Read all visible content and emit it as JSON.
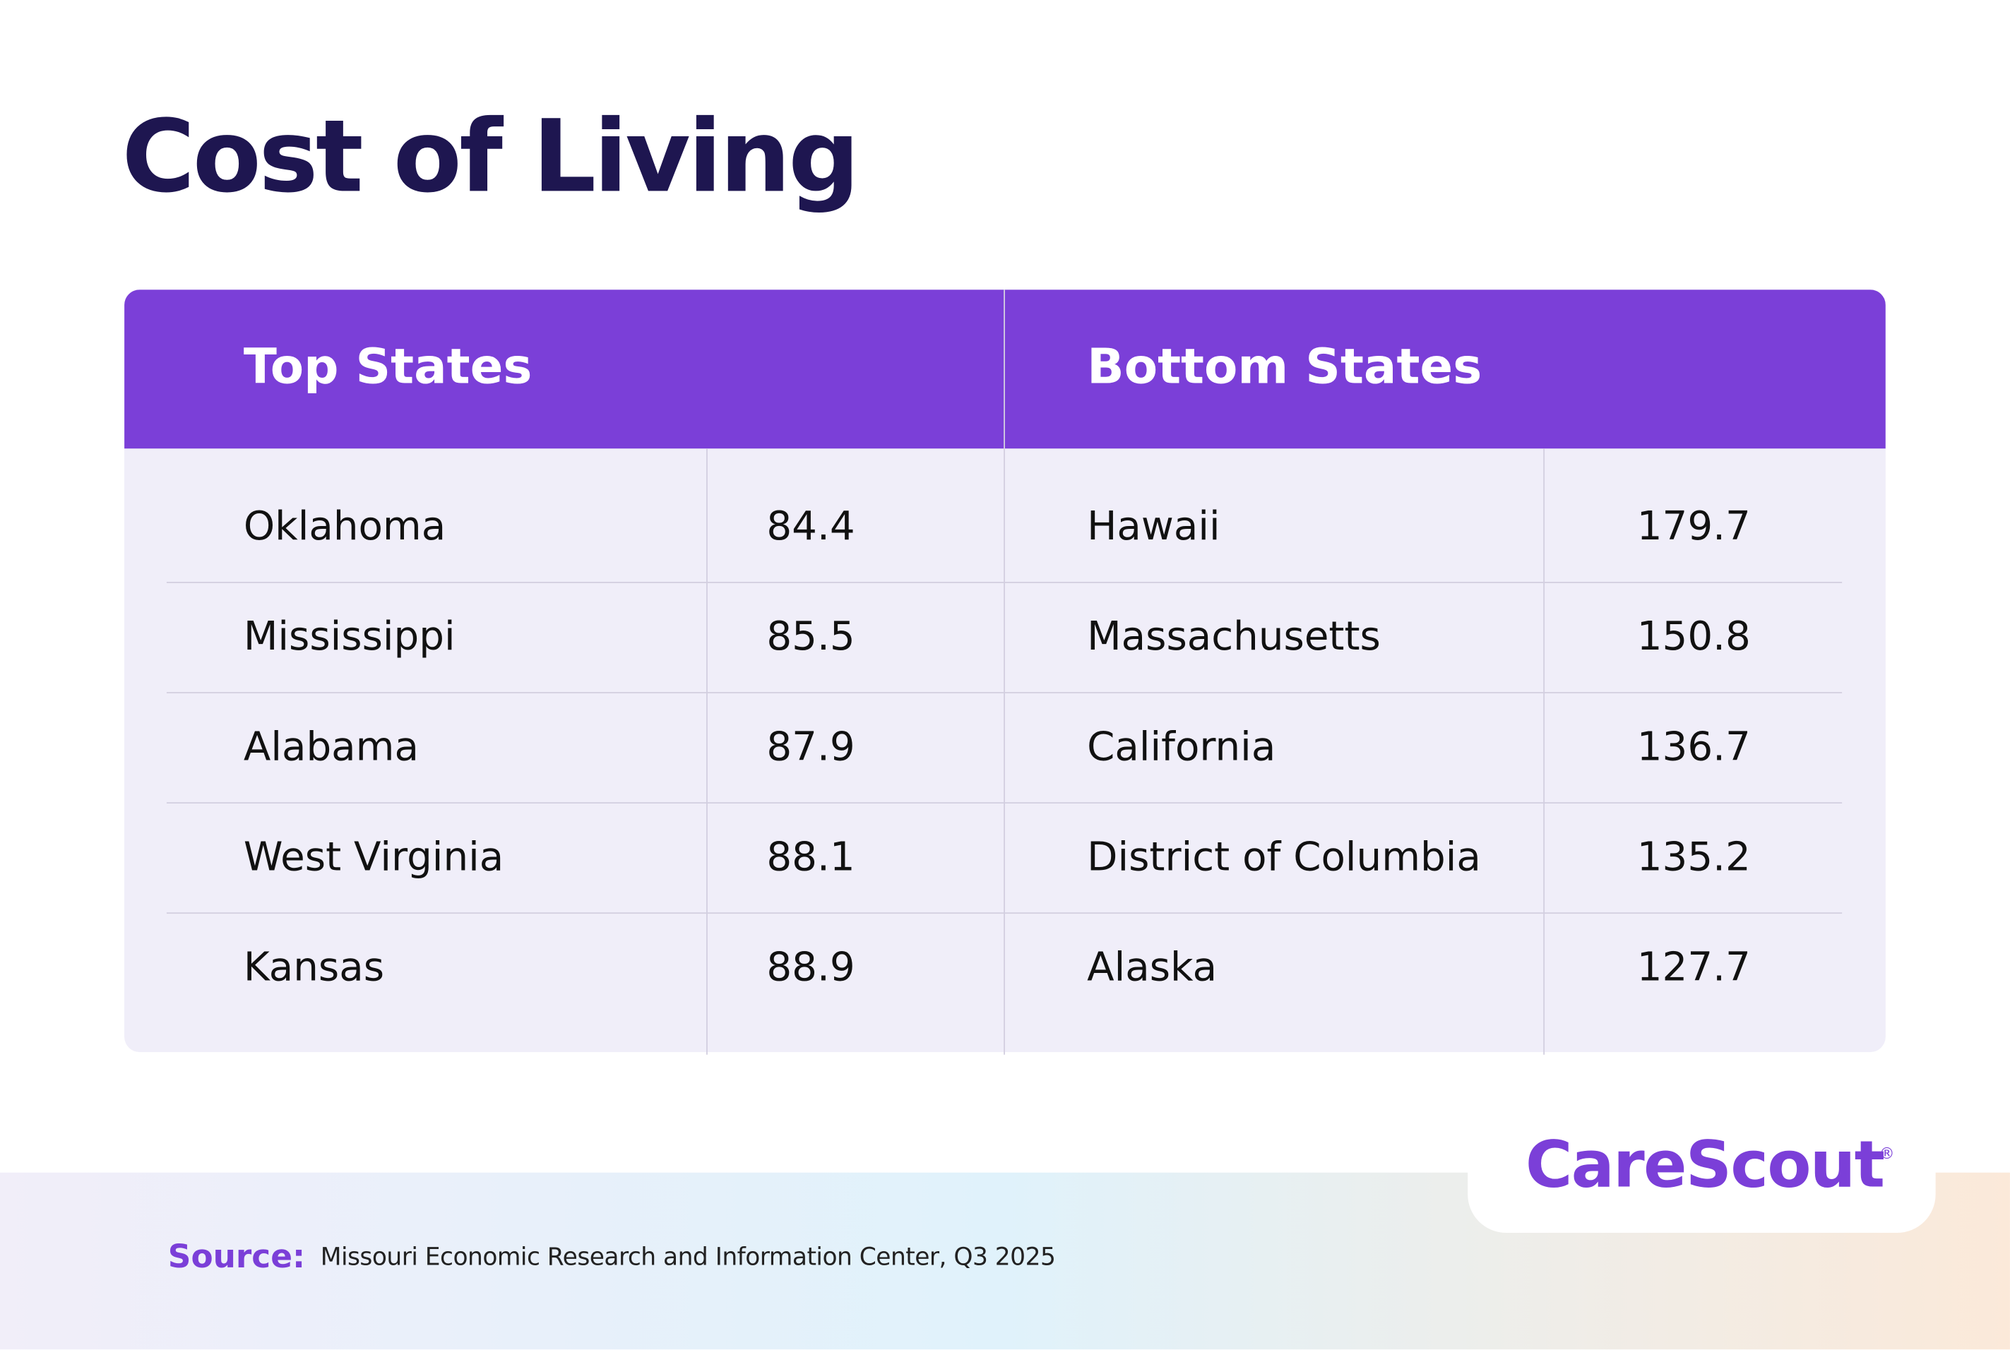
{
  "header": {
    "title": "Cost of Living"
  },
  "table": {
    "groups": [
      {
        "heading": "Top States",
        "rows": [
          [
            "Oklahoma",
            "84.4"
          ],
          [
            "Mississippi",
            "85.5"
          ],
          [
            "Alabama",
            "87.9"
          ],
          [
            "West Virginia",
            "88.1"
          ],
          [
            "Kansas",
            "88.9"
          ]
        ]
      },
      {
        "heading": "Bottom States",
        "rows": [
          [
            "Hawaii",
            "179.7"
          ],
          [
            "Massachusetts",
            "150.8"
          ],
          [
            "California",
            "136.7"
          ],
          [
            "District of Columbia",
            "135.2"
          ],
          [
            "Alaska",
            "127.7"
          ]
        ]
      }
    ]
  },
  "footer": {
    "source_label": "Source:",
    "source_text": "Missouri Economic Research and Information Center, Q3 2025",
    "logo": "CareScout",
    "logo_mark": "®"
  }
}
